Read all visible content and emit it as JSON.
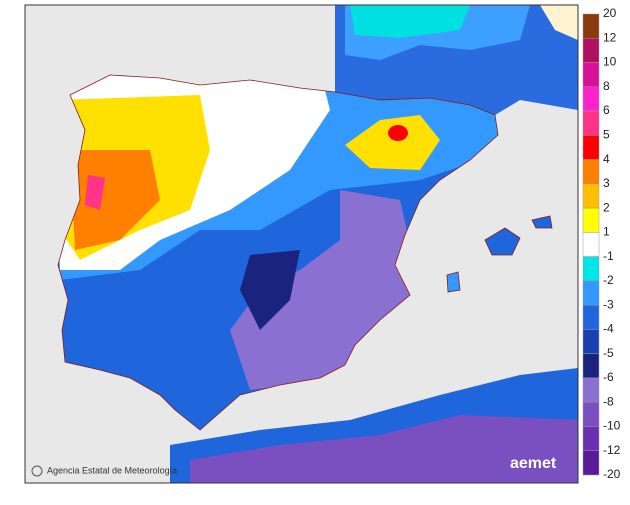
{
  "map": {
    "credit": "Agencia Estatal de Meteorología",
    "logo": "aemet",
    "colorbar": {
      "ticks": [
        20,
        12,
        10,
        8,
        6,
        5,
        4,
        3,
        2,
        1,
        -1,
        -2,
        -3,
        -4,
        -5,
        -6,
        -8,
        -10,
        -12,
        -20
      ],
      "colors": [
        "#8b3a0e",
        "#b01060",
        "#d8109a",
        "#ff22cc",
        "#ff3388",
        "#ff0000",
        "#ff8000",
        "#ffbf00",
        "#ffff00",
        "#ffffff",
        "#00e5e5",
        "#3399ff",
        "#1f66dd",
        "#1a3fb0",
        "#1a237e",
        "#8a70d0",
        "#7a50c0",
        "#6a30b0",
        "#5a1a9a"
      ]
    }
  }
}
